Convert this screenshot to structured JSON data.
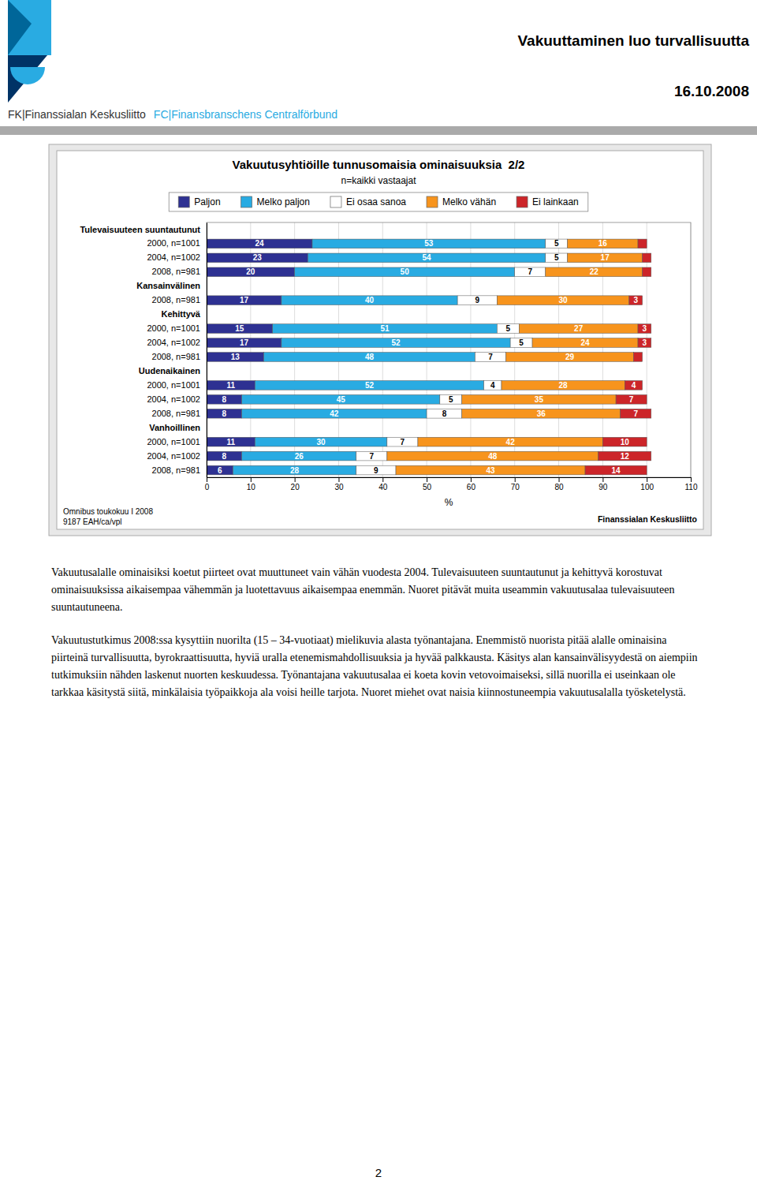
{
  "chart_data": {
    "type": "bar",
    "orientation": "horizontal",
    "stacked": true,
    "title": "Vakuutusyhtiöille tunnusomaisia ominaisuuksia  2/2",
    "subtitle": "n=kaikki vastaajat",
    "xlabel": "%",
    "xlim": [
      0,
      110
    ],
    "xticks": [
      0,
      10,
      20,
      30,
      40,
      50,
      60,
      70,
      80,
      90,
      100,
      110
    ],
    "grid": true,
    "legend": "top",
    "data_labels": true,
    "categories": [
      "Tulevaisuuteen suuntautunut",
      "2000, n=1001",
      "2004, n=1002",
      "2008, n=981",
      "Kansainvälinen",
      "2008, n=981",
      "Kehittyvä",
      "2000, n=1001",
      "2004, n=1002",
      "2008, n=981",
      "Uudenaikainen",
      "2000, n=1001",
      "2004, n=1002",
      "2008, n=981",
      "Vanhoillinen",
      "2000, n=1001",
      "2004, n=1002",
      "2008, n=981"
    ],
    "series": [
      {
        "name": "Paljon",
        "color": "#2E3192",
        "values": [
          null,
          24,
          23,
          20,
          null,
          17,
          null,
          15,
          17,
          13,
          null,
          11,
          8,
          8,
          null,
          11,
          8,
          6
        ],
        "value_labels": [
          null,
          "24",
          "23",
          "20",
          null,
          "17",
          null,
          "15",
          "17",
          "13",
          null,
          "11",
          "8",
          "8",
          null,
          "11",
          "8",
          "6"
        ]
      },
      {
        "name": "Melko paljon",
        "color": "#29ABE2",
        "values": [
          null,
          53,
          54,
          50,
          null,
          40,
          null,
          51,
          52,
          48,
          null,
          52,
          45,
          42,
          null,
          30,
          26,
          28
        ],
        "value_labels": [
          null,
          "53",
          "54",
          "50",
          null,
          "40",
          null,
          "51",
          "52",
          "48",
          null,
          "52",
          "45",
          "42",
          null,
          "30",
          "26",
          "28"
        ]
      },
      {
        "name": "Ei osaa sanoa",
        "color": "#FFFFFF",
        "values": [
          null,
          5,
          5,
          7,
          null,
          9,
          null,
          5,
          5,
          7,
          null,
          4,
          5,
          8,
          null,
          7,
          7,
          9
        ],
        "value_labels": [
          null,
          "5",
          "5",
          "7",
          null,
          "9",
          null,
          "5",
          "5",
          "7",
          null,
          "4",
          "5",
          "8",
          null,
          "7",
          "7",
          "9"
        ]
      },
      {
        "name": "Melko vähän",
        "color": "#F7941D",
        "values": [
          null,
          16,
          17,
          22,
          null,
          30,
          null,
          27,
          24,
          29,
          null,
          28,
          35,
          36,
          null,
          42,
          48,
          43
        ],
        "value_labels": [
          null,
          "16",
          "17",
          "22",
          null,
          "30",
          null,
          "27",
          "24",
          "29",
          null,
          "28",
          "35",
          "36",
          null,
          "42",
          "48",
          "43"
        ]
      },
      {
        "name": "Ei lainkaan",
        "color": "#CC2529",
        "values": [
          null,
          2,
          2,
          2,
          null,
          3,
          null,
          3,
          3,
          2,
          null,
          4,
          7,
          7,
          null,
          10,
          12,
          14
        ],
        "value_labels": [
          null,
          null,
          null,
          null,
          null,
          "3",
          null,
          "3",
          "3",
          null,
          null,
          "4",
          "7",
          "7",
          null,
          "10",
          "12",
          "14"
        ]
      }
    ]
  },
  "org_names": [
    "FK|Finanssialan Keskusliitto",
    "FC|Finansbranschens Centralförbund"
  ],
  "header_title": "Vakuuttaminen luo turvallisuutta",
  "header_date": "16.10.2008",
  "footer_left": [
    "Omnibus toukokuu I 2008",
    "9187 EAH/ca/vpl"
  ],
  "footer_right": "Finanssialan Keskusliitto",
  "paragraphs": [
    "Vakuutusalalle ominaisiksi koetut piirteet ovat muuttuneet vain vähän vuodesta 2004.   Tulevaisuuteen suuntautunut ja kehittyvä korostuvat ominaisuuksissa aikaisempaa vähemmän ja luotettavuus aikaisempaa enemmän. Nuoret pitävät muita useammin vakuutusalaa tulevaisuuteen suuntautuneena.",
    "Vakuutustutkimus 2008:ssa kysyttiin nuorilta (15 – 34-vuotiaat) mielikuvia alasta työnantajana. Enemmistö nuorista pitää alalle ominaisina piirteinä turvallisuutta, byrokraattisuutta, hyviä uralla etenemismahdollisuuksia ja hyvää palkkausta. Käsitys alan kansainvälisyydestä on aiempiin tutkimuksiin nähden laskenut nuorten keskuudessa. Työnantajana vakuutusalaa ei koeta kovin vetovoimaiseksi, sillä nuorilla ei useinkaan ole tarkkaa käsitystä siitä, minkälaisia työpaikkoja ala voisi heille tarjota. Nuoret miehet ovat naisia kiinnostuneempia vakuutusalalla työsketelystä."
  ],
  "page_number": "2"
}
